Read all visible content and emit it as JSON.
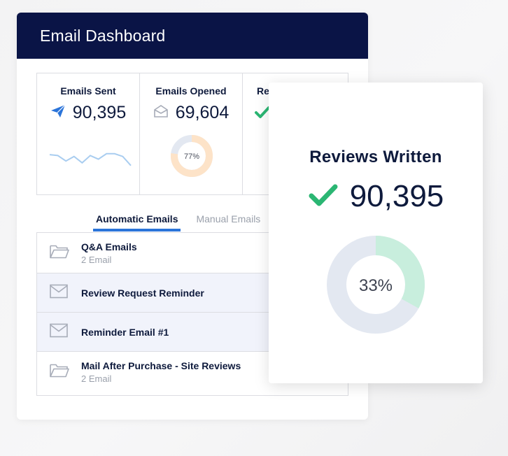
{
  "header": {
    "title": "Email Dashboard"
  },
  "stats": [
    {
      "label": "Emails Sent",
      "value": "90,395",
      "icon": "paper-plane-icon"
    },
    {
      "label": "Emails Opened",
      "value": "69,604",
      "icon": "envelope-open-icon",
      "donut_label": "77%",
      "donut_fraction": 0.77
    },
    {
      "label": "Re",
      "icon": "check-icon"
    }
  ],
  "sparkline": [
    0.35,
    0.4,
    0.7,
    0.45,
    0.8,
    0.4,
    0.6,
    0.3,
    0.3,
    0.45,
    0.95
  ],
  "tabs": [
    {
      "label": "Automatic Emails",
      "active": true
    },
    {
      "label": "Manual Emails",
      "active": false
    }
  ],
  "list": [
    {
      "title": "Q&A Emails",
      "subtitle": "2 Email",
      "icon": "folder-icon",
      "highlight": false
    },
    {
      "title": "Review Request Reminder",
      "subtitle": "",
      "icon": "envelope-icon",
      "highlight": true
    },
    {
      "title": "Reminder Email #1",
      "subtitle": "",
      "icon": "envelope-icon",
      "highlight": true
    },
    {
      "title": "Mail After Purchase - Site Reviews",
      "subtitle": "2 Email",
      "icon": "folder-icon",
      "highlight": false
    }
  ],
  "overlay": {
    "title": "Reviews Written",
    "value": "90,395",
    "icon": "check-icon",
    "donut_label": "33%",
    "donut_fraction": 0.33
  },
  "colors": {
    "header_bg": "#0a1446",
    "accent_blue": "#2b74d9",
    "check_green": "#2bb673",
    "donut_orange": "#fde3c8",
    "donut_teal": "#c8eedd",
    "donut_track": "#e3e8f1"
  }
}
